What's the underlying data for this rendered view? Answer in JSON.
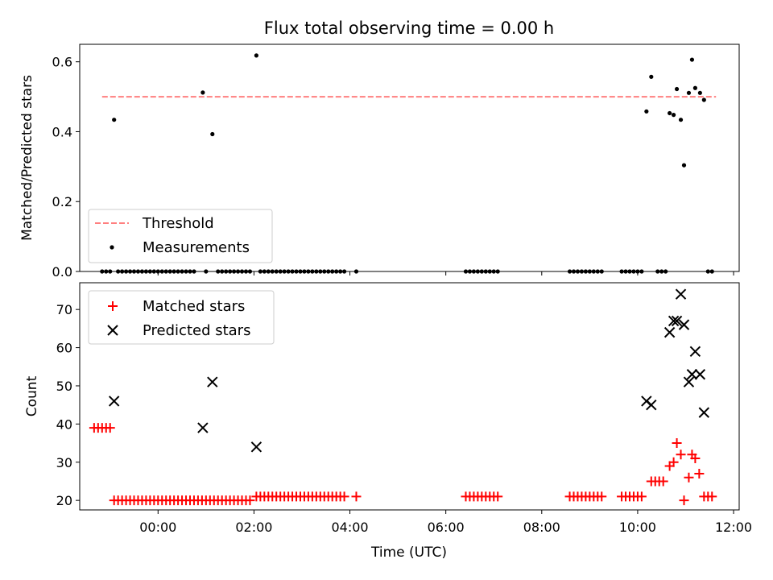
{
  "chart_data": [
    {
      "type": "scatter",
      "title": "Flux total observing time = 0.00 h",
      "xlabel": "",
      "ylabel": "Matched/Predicted stars",
      "xlim": [
        "22:22",
        "12:07"
      ],
      "ylim": [
        0,
        0.65
      ],
      "yticks": [
        "0.0",
        "0.2",
        "0.4",
        "0.6"
      ],
      "legend": "lower-left",
      "series": [
        {
          "name": "Threshold",
          "style": "dashed-line",
          "color": "#ff7f7f",
          "points": [
            [
              "22:50",
              0.5
            ],
            [
              "11:38",
              0.5
            ]
          ]
        },
        {
          "name": "Measurements",
          "style": "dot",
          "color": "#000000",
          "points": [
            [
              "23:05",
              0.434
            ],
            [
              "00:56",
              0.512
            ],
            [
              "01:08",
              0.393
            ],
            [
              "02:03",
              0.618
            ],
            [
              "10:11",
              0.458
            ],
            [
              "10:17",
              0.557
            ],
            [
              "10:40",
              0.453
            ],
            [
              "10:45",
              0.448
            ],
            [
              "10:49",
              0.522
            ],
            [
              "10:54",
              0.434
            ],
            [
              "10:58",
              0.304
            ],
            [
              "11:04",
              0.511
            ],
            [
              "11:08",
              0.606
            ],
            [
              "11:12",
              0.525
            ],
            [
              "11:18",
              0.511
            ],
            [
              "11:23",
              0.491
            ],
            [
              "22:50",
              0
            ],
            [
              "22:55",
              0
            ],
            [
              "23:00",
              0
            ],
            [
              "23:10",
              0
            ],
            [
              "23:15",
              0
            ],
            [
              "23:20",
              0
            ],
            [
              "23:25",
              0
            ],
            [
              "23:30",
              0
            ],
            [
              "23:35",
              0
            ],
            [
              "23:40",
              0
            ],
            [
              "23:45",
              0
            ],
            [
              "23:50",
              0
            ],
            [
              "23:55",
              0
            ],
            [
              "00:00",
              0
            ],
            [
              "00:05",
              0
            ],
            [
              "00:10",
              0
            ],
            [
              "00:15",
              0
            ],
            [
              "00:20",
              0
            ],
            [
              "00:25",
              0
            ],
            [
              "00:30",
              0
            ],
            [
              "00:35",
              0
            ],
            [
              "00:40",
              0
            ],
            [
              "00:45",
              0
            ],
            [
              "01:00",
              0
            ],
            [
              "01:15",
              0
            ],
            [
              "01:20",
              0
            ],
            [
              "01:25",
              0
            ],
            [
              "01:30",
              0
            ],
            [
              "01:35",
              0
            ],
            [
              "01:40",
              0
            ],
            [
              "01:45",
              0
            ],
            [
              "01:50",
              0
            ],
            [
              "01:55",
              0
            ],
            [
              "02:08",
              0
            ],
            [
              "02:13",
              0
            ],
            [
              "02:18",
              0
            ],
            [
              "02:23",
              0
            ],
            [
              "02:28",
              0
            ],
            [
              "02:33",
              0
            ],
            [
              "02:38",
              0
            ],
            [
              "02:43",
              0
            ],
            [
              "02:48",
              0
            ],
            [
              "02:53",
              0
            ],
            [
              "02:58",
              0
            ],
            [
              "03:03",
              0
            ],
            [
              "03:08",
              0
            ],
            [
              "03:13",
              0
            ],
            [
              "03:18",
              0
            ],
            [
              "03:23",
              0
            ],
            [
              "03:28",
              0
            ],
            [
              "03:33",
              0
            ],
            [
              "03:38",
              0
            ],
            [
              "03:43",
              0
            ],
            [
              "03:48",
              0
            ],
            [
              "03:53",
              0
            ],
            [
              "04:08",
              0
            ],
            [
              "06:25",
              0
            ],
            [
              "06:30",
              0
            ],
            [
              "06:35",
              0
            ],
            [
              "06:40",
              0
            ],
            [
              "06:45",
              0
            ],
            [
              "06:50",
              0
            ],
            [
              "06:55",
              0
            ],
            [
              "07:00",
              0
            ],
            [
              "07:05",
              0
            ],
            [
              "08:35",
              0
            ],
            [
              "08:40",
              0
            ],
            [
              "08:45",
              0
            ],
            [
              "08:50",
              0
            ],
            [
              "08:55",
              0
            ],
            [
              "09:00",
              0
            ],
            [
              "09:05",
              0
            ],
            [
              "09:10",
              0
            ],
            [
              "09:15",
              0
            ],
            [
              "09:40",
              0
            ],
            [
              "09:45",
              0
            ],
            [
              "09:50",
              0
            ],
            [
              "09:55",
              0
            ],
            [
              "10:00",
              0
            ],
            [
              "10:05",
              0
            ],
            [
              "10:25",
              0
            ],
            [
              "10:30",
              0
            ],
            [
              "10:35",
              0
            ],
            [
              "11:28",
              0
            ],
            [
              "11:33",
              0
            ]
          ]
        }
      ]
    },
    {
      "type": "scatter",
      "title": "",
      "xlabel": "Time (UTC)",
      "ylabel": "Count",
      "xlim": [
        "22:22",
        "12:07"
      ],
      "ylim": [
        17.5,
        77
      ],
      "xticks": [
        "00:00",
        "02:00",
        "04:00",
        "06:00",
        "08:00",
        "10:00",
        "12:00"
      ],
      "yticks": [
        "20",
        "30",
        "40",
        "50",
        "60",
        "70"
      ],
      "legend": "upper-left",
      "series": [
        {
          "name": "Matched stars",
          "style": "plus",
          "color": "#ff0000",
          "points": [
            [
              "22:40",
              39
            ],
            [
              "22:45",
              39
            ],
            [
              "22:50",
              39
            ],
            [
              "22:55",
              39
            ],
            [
              "23:00",
              39
            ],
            [
              "23:05",
              20
            ],
            [
              "23:10",
              20
            ],
            [
              "23:15",
              20
            ],
            [
              "23:20",
              20
            ],
            [
              "23:25",
              20
            ],
            [
              "23:30",
              20
            ],
            [
              "23:35",
              20
            ],
            [
              "23:40",
              20
            ],
            [
              "23:45",
              20
            ],
            [
              "23:50",
              20
            ],
            [
              "23:55",
              20
            ],
            [
              "00:00",
              20
            ],
            [
              "00:05",
              20
            ],
            [
              "00:10",
              20
            ],
            [
              "00:15",
              20
            ],
            [
              "00:20",
              20
            ],
            [
              "00:25",
              20
            ],
            [
              "00:30",
              20
            ],
            [
              "00:35",
              20
            ],
            [
              "00:40",
              20
            ],
            [
              "00:45",
              20
            ],
            [
              "00:50",
              20
            ],
            [
              "00:55",
              20
            ],
            [
              "01:00",
              20
            ],
            [
              "01:05",
              20
            ],
            [
              "01:10",
              20
            ],
            [
              "01:15",
              20
            ],
            [
              "01:20",
              20
            ],
            [
              "01:25",
              20
            ],
            [
              "01:30",
              20
            ],
            [
              "01:35",
              20
            ],
            [
              "01:40",
              20
            ],
            [
              "01:45",
              20
            ],
            [
              "01:50",
              20
            ],
            [
              "01:55",
              20
            ],
            [
              "02:03",
              21
            ],
            [
              "02:08",
              21
            ],
            [
              "02:13",
              21
            ],
            [
              "02:18",
              21
            ],
            [
              "02:23",
              21
            ],
            [
              "02:28",
              21
            ],
            [
              "02:33",
              21
            ],
            [
              "02:38",
              21
            ],
            [
              "02:43",
              21
            ],
            [
              "02:48",
              21
            ],
            [
              "02:53",
              21
            ],
            [
              "02:58",
              21
            ],
            [
              "03:03",
              21
            ],
            [
              "03:08",
              21
            ],
            [
              "03:13",
              21
            ],
            [
              "03:18",
              21
            ],
            [
              "03:23",
              21
            ],
            [
              "03:28",
              21
            ],
            [
              "03:33",
              21
            ],
            [
              "03:38",
              21
            ],
            [
              "03:43",
              21
            ],
            [
              "03:48",
              21
            ],
            [
              "03:53",
              21
            ],
            [
              "04:08",
              21
            ],
            [
              "06:25",
              21
            ],
            [
              "06:30",
              21
            ],
            [
              "06:35",
              21
            ],
            [
              "06:40",
              21
            ],
            [
              "06:45",
              21
            ],
            [
              "06:50",
              21
            ],
            [
              "06:55",
              21
            ],
            [
              "07:00",
              21
            ],
            [
              "07:05",
              21
            ],
            [
              "08:35",
              21
            ],
            [
              "08:40",
              21
            ],
            [
              "08:45",
              21
            ],
            [
              "08:50",
              21
            ],
            [
              "08:55",
              21
            ],
            [
              "09:00",
              21
            ],
            [
              "09:05",
              21
            ],
            [
              "09:10",
              21
            ],
            [
              "09:15",
              21
            ],
            [
              "09:40",
              21
            ],
            [
              "09:45",
              21
            ],
            [
              "09:50",
              21
            ],
            [
              "09:55",
              21
            ],
            [
              "10:00",
              21
            ],
            [
              "10:05",
              21
            ],
            [
              "10:17",
              25
            ],
            [
              "10:22",
              25
            ],
            [
              "10:27",
              25
            ],
            [
              "10:32",
              25
            ],
            [
              "10:40",
              29
            ],
            [
              "10:45",
              30
            ],
            [
              "10:49",
              35
            ],
            [
              "10:54",
              32
            ],
            [
              "10:58",
              20
            ],
            [
              "11:04",
              26
            ],
            [
              "11:08",
              32
            ],
            [
              "11:12",
              31
            ],
            [
              "11:17",
              27
            ],
            [
              "11:23",
              21
            ],
            [
              "11:28",
              21
            ],
            [
              "11:33",
              21
            ]
          ]
        },
        {
          "name": "Predicted stars",
          "style": "x",
          "color": "#000000",
          "points": [
            [
              "23:05",
              46
            ],
            [
              "00:56",
              39
            ],
            [
              "01:08",
              51
            ],
            [
              "02:03",
              34
            ],
            [
              "10:11",
              46
            ],
            [
              "10:17",
              45
            ],
            [
              "10:40",
              64
            ],
            [
              "10:45",
              67
            ],
            [
              "10:49",
              67
            ],
            [
              "10:54",
              74
            ],
            [
              "10:58",
              66
            ],
            [
              "11:04",
              51
            ],
            [
              "11:08",
              53
            ],
            [
              "11:12",
              59
            ],
            [
              "11:18",
              53
            ],
            [
              "11:23",
              43
            ]
          ]
        }
      ]
    }
  ]
}
